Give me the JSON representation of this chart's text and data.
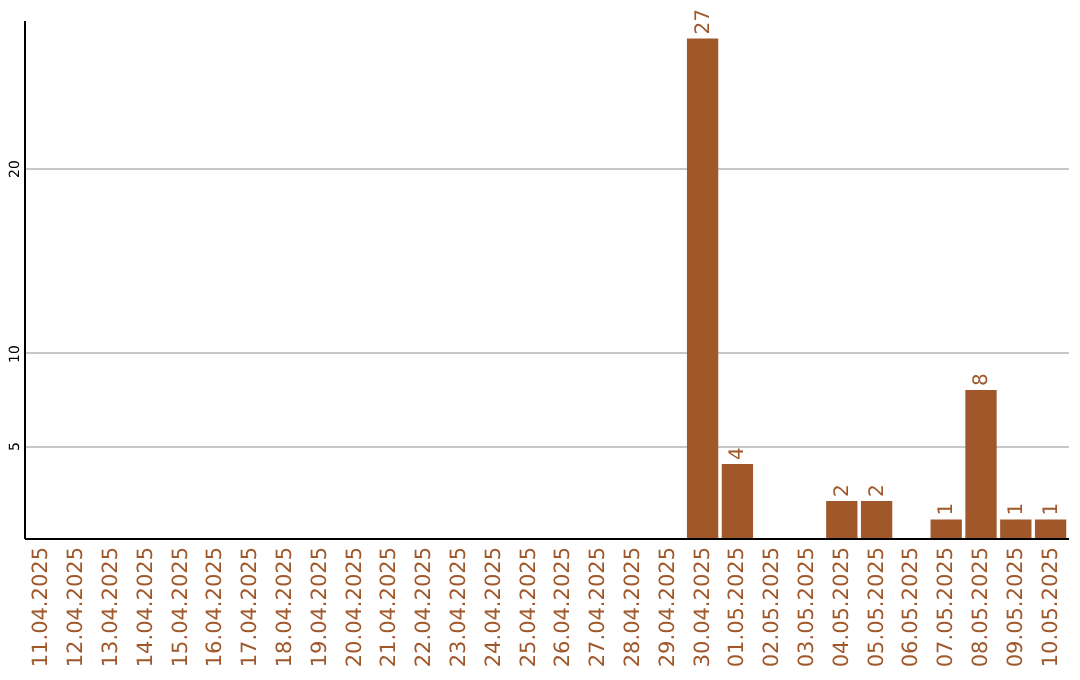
{
  "chart_data": {
    "type": "bar",
    "categories": [
      "11.04.2025",
      "12.04.2025",
      "13.04.2025",
      "14.04.2025",
      "15.04.2025",
      "16.04.2025",
      "17.04.2025",
      "18.04.2025",
      "19.04.2025",
      "20.04.2025",
      "21.04.2025",
      "22.04.2025",
      "23.04.2025",
      "24.04.2025",
      "25.04.2025",
      "26.04.2025",
      "27.04.2025",
      "28.04.2025",
      "29.04.2025",
      "30.04.2025",
      "01.05.2025",
      "02.05.2025",
      "03.05.2025",
      "04.05.2025",
      "05.05.2025",
      "06.05.2025",
      "07.05.2025",
      "08.05.2025",
      "09.05.2025",
      "10.05.2025"
    ],
    "values": [
      0,
      0,
      0,
      0,
      0,
      0,
      0,
      0,
      0,
      0,
      0,
      0,
      0,
      0,
      0,
      0,
      0,
      0,
      0,
      27,
      4,
      0,
      0,
      2,
      2,
      0,
      1,
      8,
      1,
      1
    ],
    "value_labels": [
      null,
      null,
      null,
      null,
      null,
      null,
      null,
      null,
      null,
      null,
      null,
      null,
      null,
      null,
      null,
      null,
      null,
      null,
      null,
      "27",
      "4",
      null,
      null,
      "2",
      "2",
      null,
      "1",
      "8",
      "1",
      "1"
    ],
    "color": "#a0572a",
    "ylim": [
      0,
      28
    ],
    "yticks": [
      5,
      10,
      20
    ],
    "grid": "y"
  }
}
